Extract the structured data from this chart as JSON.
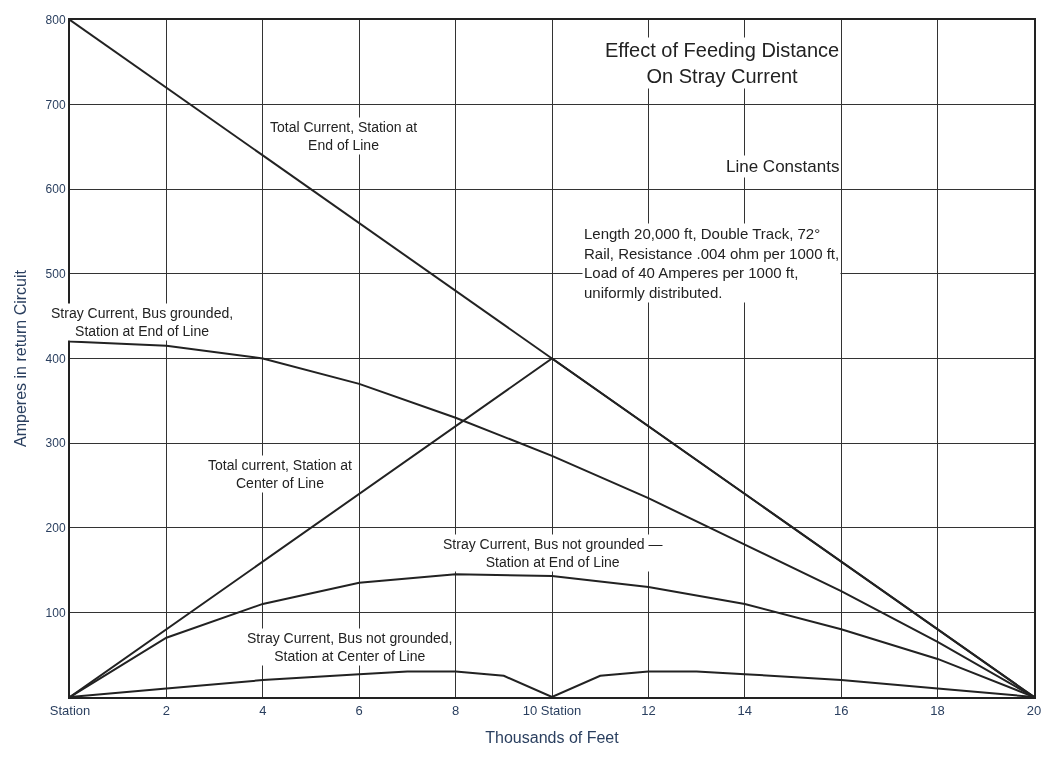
{
  "chart_data": {
    "type": "line",
    "title": "Effect of Feeding Distance On Stray Current",
    "subtitle": "Line Constants",
    "xlabel": "Thousands of Feet",
    "ylabel": "Amperes in return Circuit",
    "annotations": [
      "Length 20,000 ft, Double Track, 72° Rail, Resistance .004 ohm per 1000 ft, Load of 40 Amperes per 1000 ft, uniformly distributed."
    ],
    "series": [
      {
        "name": "Total Current, Station at End of Line",
        "color": "#222222",
        "x": [
          0,
          4,
          20
        ],
        "values": [
          800,
          640,
          0
        ]
      },
      {
        "name": "Total current, Station at Center of Line",
        "color": "#222222",
        "x": [
          0,
          10,
          20
        ],
        "values": [
          0,
          400,
          0
        ]
      },
      {
        "name": "Stray Current, Bus grounded, Station at End of Line",
        "color": "#222222",
        "x": [
          0,
          2,
          4,
          6,
          8,
          10,
          12,
          14,
          16,
          18,
          20
        ],
        "values": [
          420,
          415,
          400,
          370,
          330,
          285,
          235,
          180,
          125,
          65,
          0
        ]
      },
      {
        "name": "Stray Current, Bus not grounded — Station at End of Line",
        "color": "#222222",
        "x": [
          0,
          2,
          4,
          6,
          8,
          10,
          12,
          14,
          16,
          18,
          20
        ],
        "values": [
          0,
          70,
          110,
          135,
          145,
          143,
          130,
          110,
          80,
          45,
          0
        ]
      },
      {
        "name": "Stray Current, Bus not grounded, Station at Center of Line",
        "color": "#222222",
        "x": [
          0,
          2,
          4,
          6,
          7,
          8,
          9,
          10,
          11,
          12,
          13,
          14,
          16,
          18,
          20
        ],
        "values": [
          0,
          10,
          20,
          27,
          30,
          30,
          25,
          0,
          25,
          30,
          30,
          27,
          20,
          10,
          0
        ]
      }
    ],
    "xlim": [
      0,
      20
    ],
    "ylim": [
      0,
      800
    ],
    "xticks": [
      {
        "value": 0,
        "label": "Station"
      },
      2,
      4,
      6,
      8,
      {
        "value": 10,
        "label": "10 Station"
      },
      12,
      14,
      16,
      18,
      20
    ],
    "yticks": [
      100,
      200,
      300,
      400,
      500,
      600,
      700,
      800
    ],
    "grid": true,
    "legend": false,
    "marker": "none",
    "line_style": "solid"
  }
}
